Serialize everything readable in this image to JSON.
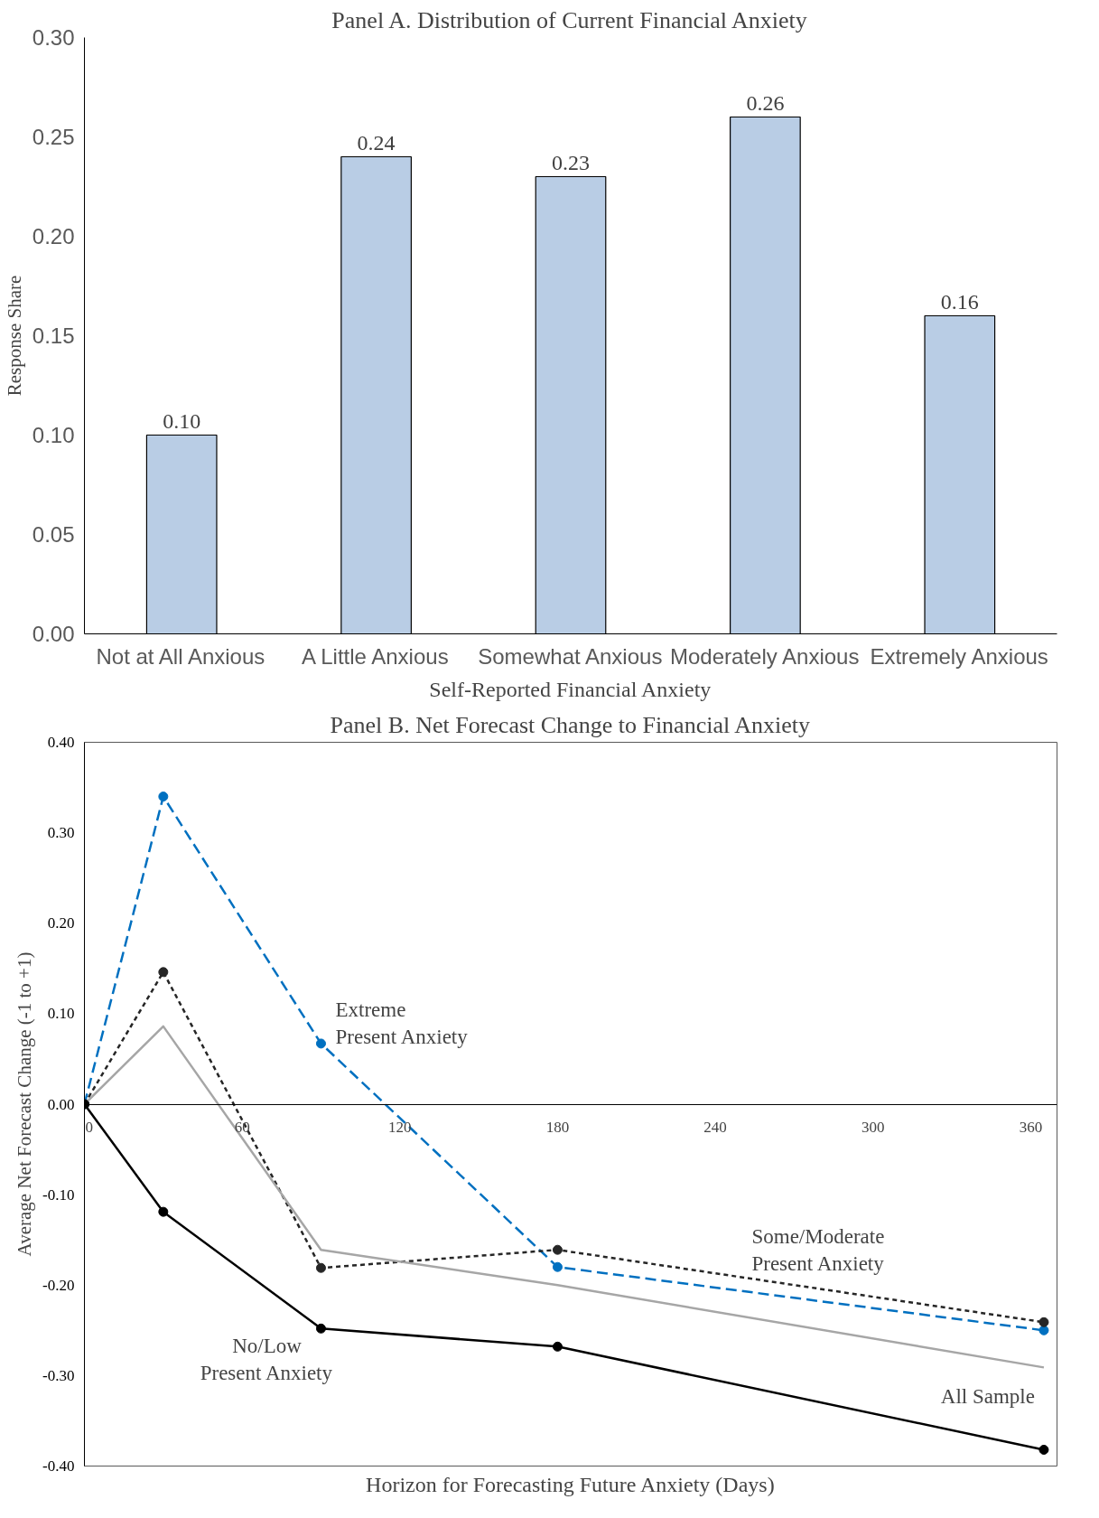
{
  "chart_data": [
    {
      "type": "bar",
      "title": "Panel A. Distribution of Current Financial Anxiety",
      "xlabel": "Self-Reported Financial Anxiety",
      "ylabel": "Response Share",
      "categories": [
        "Not at All Anxious",
        "A Little Anxious",
        "Somewhat Anxious",
        "Moderately Anxious",
        "Extremely Anxious"
      ],
      "values": [
        0.1,
        0.24,
        0.23,
        0.26,
        0.16
      ],
      "color": "#b9cde5",
      "value_labels": [
        "0.10",
        "0.24",
        "0.23",
        "0.26",
        "0.16"
      ],
      "ylim": [
        0,
        0.3
      ],
      "yticks": [
        {
          "value": 0,
          "label": "0.00"
        },
        {
          "value": 0.05,
          "label": "0.05"
        },
        {
          "value": 0.1,
          "label": "0.10"
        },
        {
          "value": 0.15,
          "label": "0.15"
        },
        {
          "value": 0.2,
          "label": "0.20"
        },
        {
          "value": 0.25,
          "label": "0.25"
        },
        {
          "value": 0.3,
          "label": "0.30"
        }
      ],
      "grid": false
    },
    {
      "type": "line",
      "title": "Panel B. Net Forecast Change to Financial Anxiety",
      "xlabel": "Horizon for Forecasting Future Anxiety (Days)",
      "ylabel": "Average Net Forecast Change (-1 to +1)",
      "x": [
        0,
        30,
        90,
        180,
        365
      ],
      "series": [
        {
          "name": "Extreme\nPresent Anxiety",
          "color": "#0070c0",
          "values": [
            0,
            0.34,
            0.067,
            -0.18,
            -0.25
          ],
          "line_style": "dashed",
          "marker": "circle"
        },
        {
          "name": "Some/Moderate\nPresent Anxiety",
          "color": "#262626",
          "values": [
            0,
            0.146,
            -0.181,
            -0.161,
            -0.241
          ],
          "line_style": "dotted",
          "marker": "circle"
        },
        {
          "name": "All Sample",
          "color": "#a6a6a6",
          "values": [
            0,
            0.086,
            -0.161,
            -0.2,
            -0.291
          ],
          "line_style": "solid",
          "marker": "none"
        },
        {
          "name": "No/Low\nPresent Anxiety",
          "color": "#000000",
          "values": [
            0,
            -0.119,
            -0.248,
            -0.268,
            -0.382
          ],
          "line_style": "solid",
          "marker": "circle"
        }
      ],
      "xlim": [
        0,
        370
      ],
      "xticks": [
        0,
        60,
        120,
        180,
        240,
        300,
        360
      ],
      "ylim": [
        -0.4,
        0.4
      ],
      "yticks": [
        {
          "value": -0.4,
          "label": "-0.40"
        },
        {
          "value": -0.3,
          "label": "-0.30"
        },
        {
          "value": -0.2,
          "label": "-0.20"
        },
        {
          "value": -0.1,
          "label": "-0.10"
        },
        {
          "value": 0,
          "label": "0.00"
        },
        {
          "value": 0.1,
          "label": "0.10"
        },
        {
          "value": 0.2,
          "label": "0.20"
        },
        {
          "value": 0.3,
          "label": "0.30"
        },
        {
          "value": 0.4,
          "label": "0.40"
        }
      ],
      "grid": false
    }
  ]
}
